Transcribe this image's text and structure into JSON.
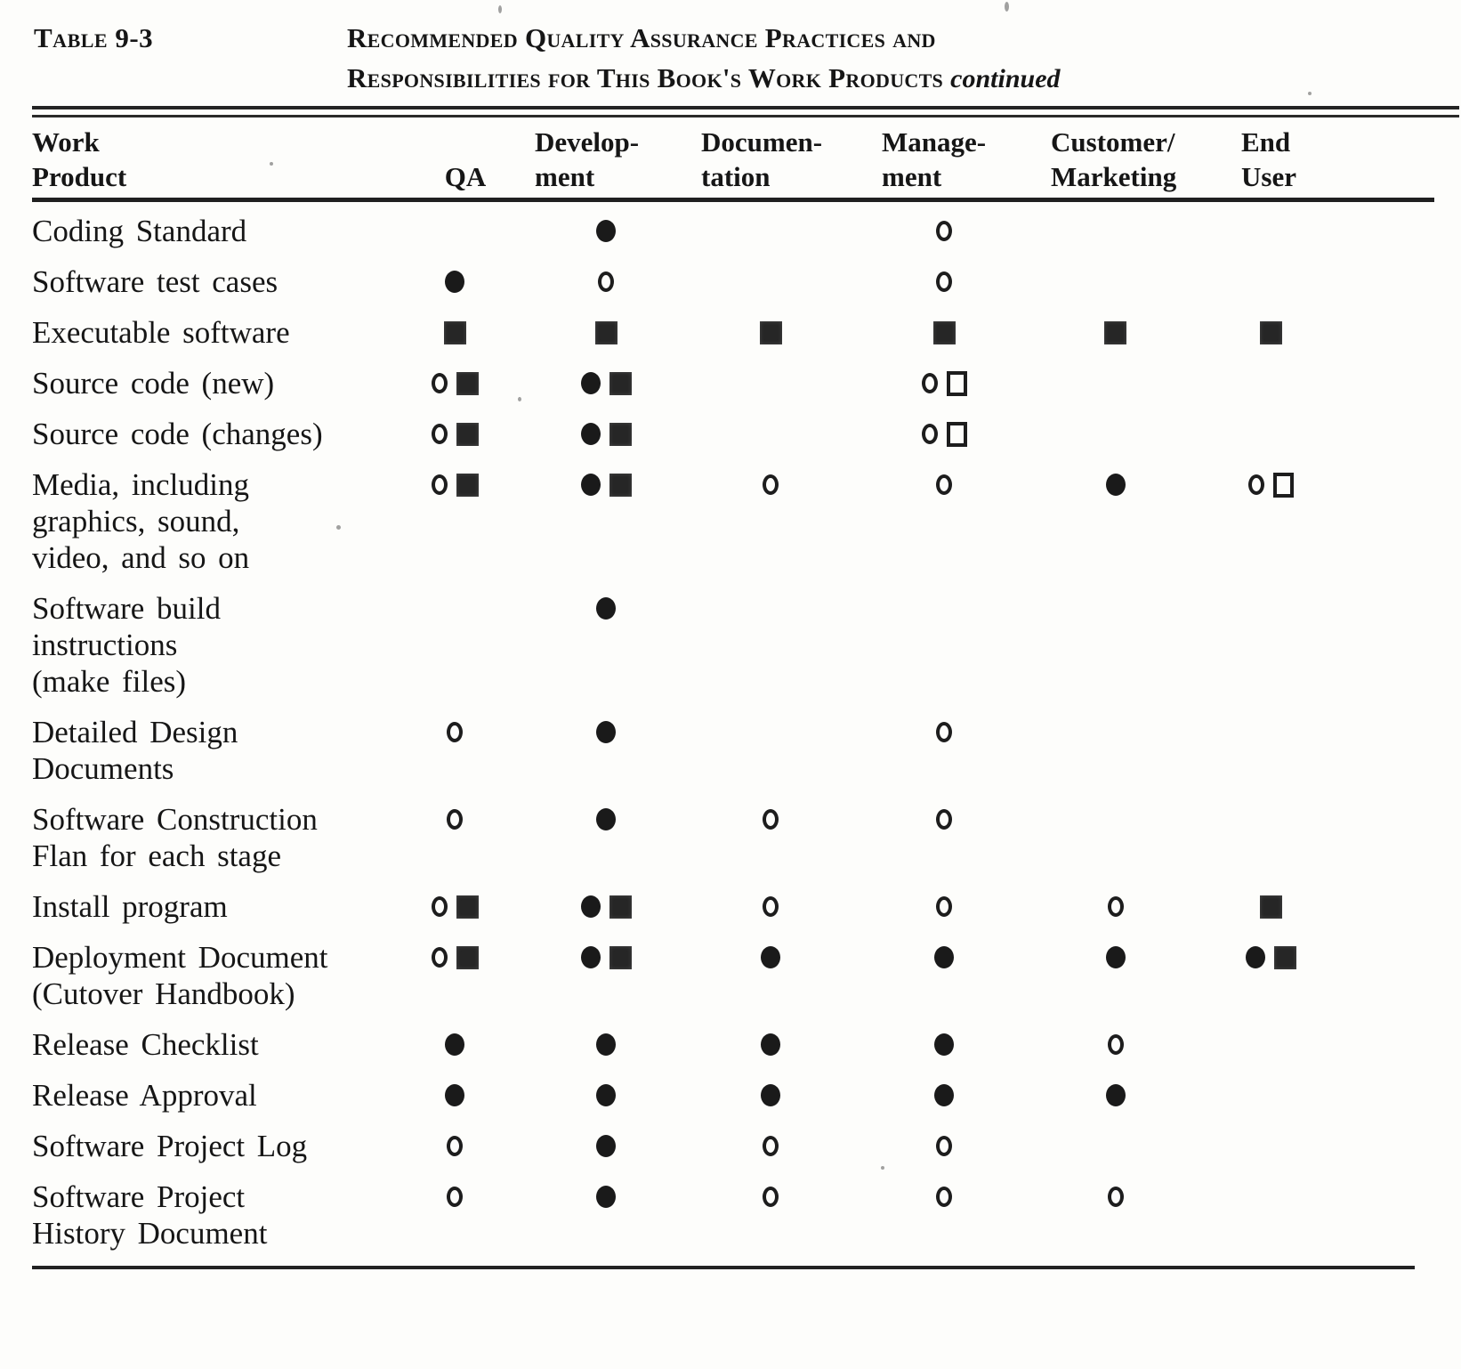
{
  "caption": {
    "label": "Table 9-3",
    "title_line1": "Recommended Quality Assurance Practices and",
    "title_line2": "Responsibilities for This Book's Work Products",
    "continued": "continued"
  },
  "table": {
    "columns": [
      {
        "id": "work-product",
        "lines": [
          "Work",
          "Product"
        ]
      },
      {
        "id": "qa",
        "lines": [
          "",
          "QA"
        ]
      },
      {
        "id": "development",
        "lines": [
          "Develop-",
          "ment"
        ]
      },
      {
        "id": "documentation",
        "lines": [
          "Documen-",
          "tation"
        ]
      },
      {
        "id": "management",
        "lines": [
          "Manage-",
          "ment"
        ]
      },
      {
        "id": "customer-marketing",
        "lines": [
          "Customer/",
          "Marketing"
        ]
      },
      {
        "id": "end-user",
        "lines": [
          "End",
          "User"
        ]
      }
    ],
    "symbol_legend": {
      "dot": "filled-circle",
      "circle": "open-circle",
      "square": "filled-square",
      "osquare": "open-square"
    },
    "rows": [
      {
        "name_lines": [
          "Coding Standard"
        ],
        "cells": [
          [],
          [
            "dot"
          ],
          [],
          [
            "circle"
          ],
          [],
          []
        ]
      },
      {
        "name_lines": [
          "Software test cases"
        ],
        "cells": [
          [
            "dot"
          ],
          [
            "circle"
          ],
          [],
          [
            "circle"
          ],
          [],
          []
        ]
      },
      {
        "name_lines": [
          "Executable software"
        ],
        "cells": [
          [
            "square"
          ],
          [
            "square"
          ],
          [
            "square"
          ],
          [
            "square"
          ],
          [
            "square"
          ],
          [
            "square"
          ]
        ]
      },
      {
        "name_lines": [
          "Source code (new)"
        ],
        "cells": [
          [
            "circle",
            "square"
          ],
          [
            "dot",
            "square"
          ],
          [],
          [
            "circle",
            "osquare"
          ],
          [],
          []
        ]
      },
      {
        "name_lines": [
          "Source code (changes)"
        ],
        "cells": [
          [
            "circle",
            "square"
          ],
          [
            "dot",
            "square"
          ],
          [],
          [
            "circle",
            "osquare"
          ],
          [],
          []
        ]
      },
      {
        "name_lines": [
          "Media, including",
          "graphics, sound,",
          "video, and so on"
        ],
        "cells": [
          [
            "circle",
            "square"
          ],
          [
            "dot",
            "square"
          ],
          [
            "circle"
          ],
          [
            "circle"
          ],
          [
            "dot"
          ],
          [
            "circle",
            "osquare"
          ]
        ]
      },
      {
        "name_lines": [
          "Software build",
          "instructions",
          "(make files)"
        ],
        "cells": [
          [],
          [
            "dot"
          ],
          [],
          [],
          [],
          []
        ]
      },
      {
        "name_lines": [
          "Detailed Design",
          "Documents"
        ],
        "cells": [
          [
            "circle"
          ],
          [
            "dot"
          ],
          [],
          [
            "circle"
          ],
          [],
          []
        ]
      },
      {
        "name_lines": [
          "Software Construction",
          "Flan for each stage"
        ],
        "cells": [
          [
            "circle"
          ],
          [
            "dot"
          ],
          [
            "circle"
          ],
          [
            "circle"
          ],
          [],
          []
        ]
      },
      {
        "name_lines": [
          "Install program"
        ],
        "cells": [
          [
            "circle",
            "square"
          ],
          [
            "dot",
            "square"
          ],
          [
            "circle"
          ],
          [
            "circle"
          ],
          [
            "circle"
          ],
          [
            "square"
          ]
        ]
      },
      {
        "name_lines": [
          "Deployment Document",
          "(Cutover Handbook)"
        ],
        "cells": [
          [
            "circle",
            "square"
          ],
          [
            "dot",
            "square"
          ],
          [
            "dot"
          ],
          [
            "dot"
          ],
          [
            "dot"
          ],
          [
            "dot",
            "square"
          ]
        ]
      },
      {
        "name_lines": [
          "Release Checklist"
        ],
        "cells": [
          [
            "dot"
          ],
          [
            "dot"
          ],
          [
            "dot"
          ],
          [
            "dot"
          ],
          [
            "circle"
          ],
          []
        ]
      },
      {
        "name_lines": [
          "Release Approval"
        ],
        "cells": [
          [
            "dot"
          ],
          [
            "dot"
          ],
          [
            "dot"
          ],
          [
            "dot"
          ],
          [
            "dot"
          ],
          []
        ]
      },
      {
        "name_lines": [
          "Software Project Log"
        ],
        "cells": [
          [
            "circle"
          ],
          [
            "dot"
          ],
          [
            "circle"
          ],
          [
            "circle"
          ],
          [],
          []
        ]
      },
      {
        "name_lines": [
          "Software Project",
          "History Document"
        ],
        "cells": [
          [
            "circle"
          ],
          [
            "dot"
          ],
          [
            "circle"
          ],
          [
            "circle"
          ],
          [
            "circle"
          ],
          []
        ]
      }
    ]
  }
}
